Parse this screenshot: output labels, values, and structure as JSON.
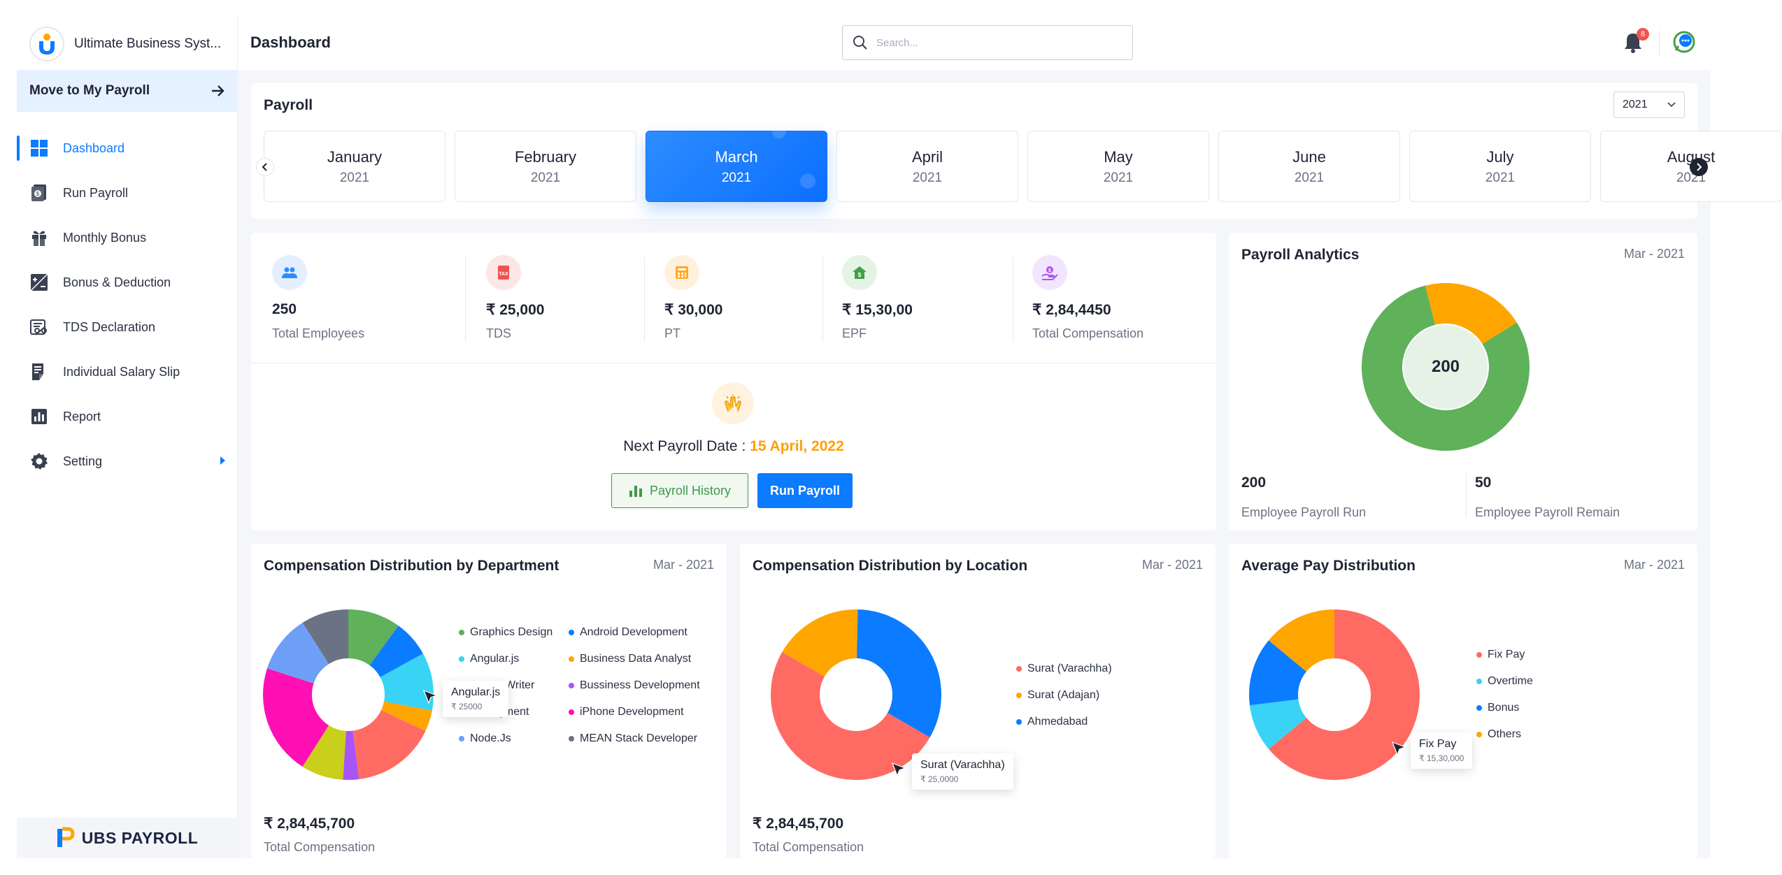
{
  "brand": {
    "name": "Ultimate Business Syst...",
    "footer": "UBS PAYROLL"
  },
  "sidebar": {
    "move_label": "Move to My Payroll",
    "items": [
      {
        "label": "Dashboard",
        "icon": "grid-icon",
        "active": true
      },
      {
        "label": "Run Payroll",
        "icon": "payroll-icon"
      },
      {
        "label": "Monthly Bonus",
        "icon": "gift-icon"
      },
      {
        "label": "Bonus & Deduction",
        "icon": "plus-minus-icon"
      },
      {
        "label": "TDS Declaration",
        "icon": "tax-icon"
      },
      {
        "label": "Individual Salary Slip",
        "icon": "slip-icon"
      },
      {
        "label": "Report",
        "icon": "report-icon"
      },
      {
        "label": "Setting",
        "icon": "gear-icon"
      }
    ]
  },
  "header": {
    "title": "Dashboard",
    "search_placeholder": "Search...",
    "notification_count": "8"
  },
  "payroll": {
    "title": "Payroll",
    "year": "2021",
    "months": [
      {
        "name": "January",
        "year": "2021"
      },
      {
        "name": "February",
        "year": "2021"
      },
      {
        "name": "March",
        "year": "2021",
        "active": true
      },
      {
        "name": "April",
        "year": "2021"
      },
      {
        "name": "May",
        "year": "2021"
      },
      {
        "name": "June",
        "year": "2021"
      },
      {
        "name": "July",
        "year": "2021"
      },
      {
        "name": "August",
        "year": "2021"
      }
    ]
  },
  "stats": [
    {
      "value": "250",
      "label": "Total Employees",
      "color": "#2f8cff",
      "bg": "#e3efff"
    },
    {
      "value": "₹ 25,000",
      "label": "TDS",
      "color": "#ef5350",
      "bg": "#fde6e6"
    },
    {
      "value": "₹ 30,000",
      "label": "PT",
      "color": "#ffa726",
      "bg": "#fff1dd"
    },
    {
      "value": "₹ 15,30,00",
      "label": "EPF",
      "color": "#43a047",
      "bg": "#e4f3e4"
    },
    {
      "value": "₹ 2,84,4450",
      "label": "Total Compensation",
      "color": "#a855f7",
      "bg": "#f1e6fd"
    }
  ],
  "next_payroll": {
    "label": "Next Payroll Date :",
    "date": "15 April, 2022",
    "history_label": "Payroll History",
    "run_label": "Run Payroll"
  },
  "analytics": {
    "title": "Payroll Analytics",
    "date": "Mar - 2021",
    "center": "200",
    "run_value": "200",
    "run_label": "Employee Payroll Run",
    "remain_value": "50",
    "remain_label": "Employee Payroll Remain",
    "colors": {
      "run": "#5fb15a",
      "remain": "#ffa500"
    }
  },
  "dept": {
    "title": "Compensation Distribution by Department",
    "date": "Mar - 2021",
    "total_value": "₹ 2,84,45,700",
    "total_label": "Total Compensation",
    "tooltip": {
      "label": "Angular.js",
      "value": "₹ 25000"
    },
    "legend": [
      {
        "label": "Graphics Design",
        "color": "#5fb15a"
      },
      {
        "label": "Android Development",
        "color": "#0b7bff"
      },
      {
        "label": "Angular.js",
        "color": "#38d3f5"
      },
      {
        "label": "Business Data Analyst",
        "color": "#ffa500"
      },
      {
        "label": "Writer",
        "color": "#ff6b63"
      },
      {
        "label": "Bussiness Development",
        "color": "#a855f7"
      },
      {
        "label": "Managment",
        "color": "#c9cf1a"
      },
      {
        "label": "iPhone Development",
        "color": "#ff10b4"
      },
      {
        "label": "Node.Js",
        "color": "#6e9ff7"
      },
      {
        "label": "MEAN Stack Developer",
        "color": "#6b7283"
      }
    ]
  },
  "loc": {
    "title": "Compensation Distribution by Location",
    "date": "Mar - 2021",
    "total_value": "₹ 2,84,45,700",
    "total_label": "Total Compensation",
    "tooltip": {
      "label": "Surat (Varachha)",
      "value": "₹ 25,0000"
    },
    "legend": [
      {
        "label": "Surat (Varachha)",
        "color": "#ff6b63"
      },
      {
        "label": "Surat (Adajan)",
        "color": "#ffa500"
      },
      {
        "label": "Ahmedabad",
        "color": "#0b7bff"
      }
    ]
  },
  "avg": {
    "title": "Average Pay Distribution",
    "date": "Mar - 2021",
    "tooltip": {
      "label": "Fix Pay",
      "value": "₹ 15,30,000"
    },
    "legend": [
      {
        "label": "Fix Pay",
        "color": "#ff6b63"
      },
      {
        "label": "Overtime",
        "color": "#38d3f5"
      },
      {
        "label": "Bonus",
        "color": "#0b7bff"
      },
      {
        "label": "Others",
        "color": "#ffa500"
      }
    ]
  },
  "chart_data": [
    {
      "type": "pie",
      "categories": [
        "Employee Payroll Run",
        "Employee Payroll Remain"
      ],
      "values": [
        200,
        50
      ]
    },
    {
      "type": "pie",
      "categories": [
        "Graphics Design",
        "Android Development",
        "Angular.js",
        "Business Data Analyst",
        "Writer",
        "Bussiness Development",
        "Managment",
        "iPhone Development",
        "Node.Js",
        "MEAN Stack Developer"
      ],
      "values": [
        10,
        7,
        11,
        4,
        16,
        3,
        8,
        21,
        11,
        9
      ]
    },
    {
      "type": "pie",
      "categories": [
        "Surat (Varachha)",
        "Surat (Adajan)",
        "Ahmedabad"
      ],
      "values": [
        50,
        17,
        33
      ]
    },
    {
      "type": "pie",
      "categories": [
        "Fix Pay",
        "Overtime",
        "Bonus",
        "Others"
      ],
      "values": [
        64,
        9,
        13,
        14
      ]
    }
  ]
}
